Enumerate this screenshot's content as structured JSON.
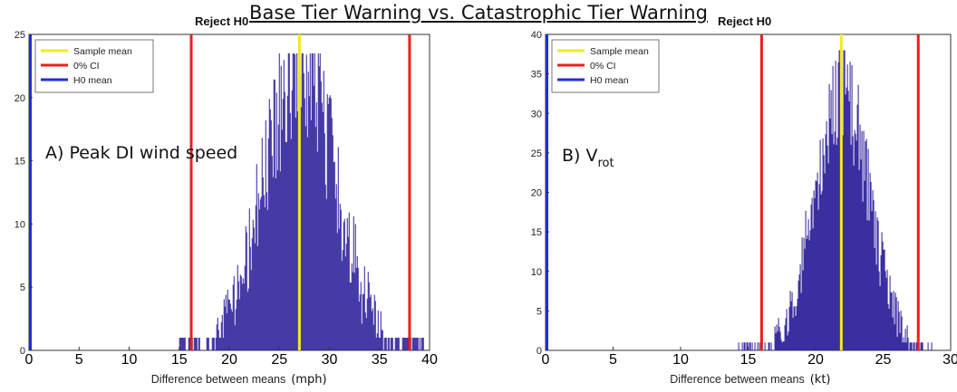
{
  "title": "Base Tier Warning vs. Catastrophic Tier Warning",
  "colors": {
    "bars": "#2d1f9a",
    "sample_mean": "#f3ea1c",
    "ci": "#e8201d",
    "h0_mean": "#1f2ee0"
  },
  "chart_data": [
    {
      "type": "bar",
      "panel_label": "A) Peak DI wind speed",
      "reject_label": "Reject H0",
      "xlabel": "Difference between means",
      "xunit": "(mph)",
      "xlim": [
        0,
        40
      ],
      "ylim": [
        0,
        25
      ],
      "xticks": [
        0,
        5,
        10,
        15,
        20,
        25,
        30,
        35,
        40
      ],
      "yticks": [
        0,
        5,
        10,
        15,
        20,
        25
      ],
      "legend": {
        "position": "top-left",
        "entries": [
          "Sample mean",
          "0% CI",
          "H0 mean"
        ]
      },
      "sample_mean": 27.0,
      "ci_lines": [
        16.2,
        38.0
      ],
      "h0_mean": 0,
      "histogram": {
        "min": 15.0,
        "max": 39.5,
        "mean": 27.0,
        "sd": 3.6,
        "peak": 22,
        "max_count": 23.5
      }
    },
    {
      "type": "bar",
      "panel_label": "B) V",
      "panel_subscript": "rot",
      "reject_label": "Reject H0",
      "xlabel": "Difference between means",
      "xunit": "(kt)",
      "xlim": [
        0,
        30
      ],
      "ylim": [
        0,
        40
      ],
      "xticks": [
        0,
        5,
        10,
        15,
        20,
        25,
        30
      ],
      "yticks": [
        0,
        5,
        10,
        15,
        20,
        25,
        30,
        35,
        40
      ],
      "legend": {
        "position": "top-left",
        "entries": [
          "Sample mean",
          "0% CI",
          "H0 mean"
        ]
      },
      "sample_mean": 21.9,
      "ci_lines": [
        16.0,
        27.6
      ],
      "h0_mean": 0,
      "histogram": {
        "min": 14.2,
        "max": 28.6,
        "mean": 21.9,
        "sd": 2.0,
        "peak": 33,
        "max_count": 38
      }
    }
  ]
}
